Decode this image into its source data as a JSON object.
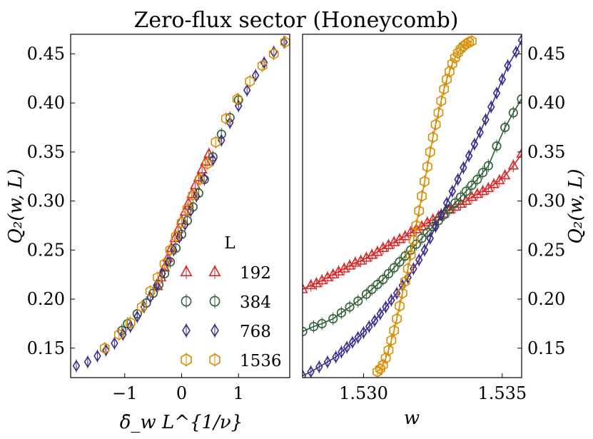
{
  "chart_data": {
    "title": "Zero-flux sector (Honeycomb)",
    "type": "scatter",
    "legend": {
      "title": "L",
      "position": "lower-right of left panel",
      "entries": [
        {
          "label": "192",
          "color": "#d62728",
          "marker": "triangle"
        },
        {
          "label": "384",
          "color": "#2f5f35",
          "marker": "circle"
        },
        {
          "label": "768",
          "color": "#3b2a8c",
          "marker": "diamond"
        },
        {
          "label": "1536",
          "color": "#d98c00",
          "marker": "hexagon"
        }
      ]
    },
    "panels": [
      {
        "name": "collapse",
        "xlabel": "δ̄_w L^{1/ν}",
        "ylabel": "Q₂(w, L)",
        "xlim": [
          -1.95,
          1.9
        ],
        "ylim": [
          0.12,
          0.47
        ],
        "xticks": [
          -1,
          0,
          1
        ],
        "xtick_labels": [
          "−1",
          "0",
          "1"
        ],
        "yticks": [
          0.15,
          0.2,
          0.25,
          0.3,
          0.35,
          0.4,
          0.45
        ],
        "ytick_labels": [
          "0.15",
          "0.20",
          "0.25",
          "0.30",
          "0.35",
          "0.40",
          "0.45"
        ],
        "series": [
          {
            "name": "192",
            "x": [
              -0.42,
              -0.36,
              -0.3,
              -0.24,
              -0.18,
              -0.12,
              -0.06,
              0.0,
              0.06,
              0.12,
              0.18,
              0.24,
              0.3,
              0.36,
              0.42,
              0.48
            ],
            "y": [
              0.213,
              0.222,
              0.232,
              0.242,
              0.252,
              0.262,
              0.271,
              0.28,
              0.289,
              0.298,
              0.307,
              0.316,
              0.324,
              0.332,
              0.34,
              0.348
            ]
          },
          {
            "name": "384",
            "x": [
              -1.05,
              -0.95,
              -0.78,
              -0.62,
              -0.5,
              -0.4,
              -0.3,
              -0.2,
              -0.1,
              0.0,
              0.1,
              0.2,
              0.3,
              0.4,
              0.55,
              0.7,
              0.85,
              1.0
            ],
            "y": [
              0.168,
              0.175,
              0.185,
              0.196,
              0.206,
              0.215,
              0.226,
              0.238,
              0.252,
              0.266,
              0.28,
              0.294,
              0.308,
              0.322,
              0.345,
              0.368,
              0.385,
              0.403
            ]
          },
          {
            "name": "768",
            "x": [
              -1.85,
              -1.65,
              -1.48,
              -1.33,
              -1.18,
              -1.03,
              -0.9,
              -0.78,
              -0.66,
              -0.55,
              -0.44,
              -0.34,
              -0.24,
              -0.14,
              -0.04,
              0.06,
              0.16,
              0.26,
              0.4,
              0.55,
              0.7,
              0.85,
              1.0,
              1.15,
              1.3,
              1.45,
              1.62,
              1.8
            ],
            "y": [
              0.132,
              0.136,
              0.142,
              0.148,
              0.155,
              0.164,
              0.172,
              0.182,
              0.192,
              0.202,
              0.214,
              0.226,
              0.238,
              0.25,
              0.263,
              0.276,
              0.29,
              0.305,
              0.323,
              0.342,
              0.362,
              0.38,
              0.397,
              0.413,
              0.428,
              0.441,
              0.452,
              0.462
            ]
          },
          {
            "name": "1536",
            "x": [
              -1.35,
              -1.1,
              -0.9,
              -0.7,
              -0.55,
              -0.42,
              -0.3,
              -0.2,
              -0.1,
              0.0,
              0.1,
              0.2,
              0.32,
              0.45,
              0.6,
              0.78,
              0.98,
              1.2,
              1.42,
              1.62,
              1.82
            ],
            "y": [
              0.15,
              0.164,
              0.176,
              0.192,
              0.208,
              0.222,
              0.236,
              0.25,
              0.264,
              0.278,
              0.292,
              0.306,
              0.322,
              0.338,
              0.36,
              0.384,
              0.404,
              0.422,
              0.438,
              0.45,
              0.462
            ]
          }
        ]
      },
      {
        "name": "raw",
        "xlabel": "w",
        "ylabel": "Q₂(w, L)",
        "xlim": [
          1.5278,
          1.5357
        ],
        "ylim": [
          0.12,
          0.47
        ],
        "xticks": [
          1.53,
          1.535
        ],
        "xtick_labels": [
          "1.530",
          "1.535"
        ],
        "yticks": [
          0.15,
          0.2,
          0.25,
          0.3,
          0.35,
          0.4,
          0.45
        ],
        "ytick_labels": [
          "0.15",
          "0.20",
          "0.25",
          "0.30",
          "0.35",
          "0.40",
          "0.45"
        ],
        "series": [
          {
            "name": "192",
            "x": [
              1.5278,
              1.5281,
              1.5283,
              1.5285,
              1.5287,
              1.5289,
              1.5291,
              1.5293,
              1.5295,
              1.5297,
              1.5299,
              1.5301,
              1.5303,
              1.5305,
              1.5307,
              1.5309,
              1.5311,
              1.5313,
              1.5315,
              1.5317,
              1.5319,
              1.5321,
              1.5323,
              1.5325,
              1.5327,
              1.5329,
              1.5331,
              1.5333,
              1.5335,
              1.5337,
              1.5339,
              1.5341,
              1.5343,
              1.5345,
              1.5347,
              1.5349,
              1.5351,
              1.5354,
              1.5357
            ],
            "y": [
              0.21,
              0.214,
              0.216,
              0.219,
              0.222,
              0.225,
              0.228,
              0.231,
              0.234,
              0.237,
              0.239,
              0.242,
              0.245,
              0.248,
              0.252,
              0.255,
              0.258,
              0.261,
              0.264,
              0.268,
              0.271,
              0.274,
              0.278,
              0.281,
              0.284,
              0.287,
              0.291,
              0.294,
              0.297,
              0.3,
              0.304,
              0.307,
              0.31,
              0.313,
              0.317,
              0.321,
              0.326,
              0.336,
              0.348
            ]
          },
          {
            "name": "384",
            "x": [
              1.5278,
              1.5282,
              1.5285,
              1.5289,
              1.5292,
              1.5295,
              1.5298,
              1.5301,
              1.5303,
              1.5305,
              1.5307,
              1.5309,
              1.5311,
              1.5313,
              1.5315,
              1.5317,
              1.5319,
              1.5321,
              1.5323,
              1.5325,
              1.5327,
              1.5329,
              1.5331,
              1.5333,
              1.5335,
              1.5337,
              1.5339,
              1.5341,
              1.5343,
              1.5345,
              1.5348,
              1.5351,
              1.5354,
              1.5357
            ],
            "y": [
              0.167,
              0.172,
              0.175,
              0.18,
              0.186,
              0.192,
              0.198,
              0.205,
              0.21,
              0.215,
              0.22,
              0.226,
              0.232,
              0.238,
              0.244,
              0.25,
              0.256,
              0.262,
              0.268,
              0.274,
              0.28,
              0.286,
              0.292,
              0.298,
              0.304,
              0.31,
              0.316,
              0.322,
              0.329,
              0.336,
              0.356,
              0.375,
              0.39,
              0.404
            ]
          },
          {
            "name": "768",
            "x": [
              1.5278,
              1.5281,
              1.5284,
              1.5287,
              1.529,
              1.5292,
              1.5294,
              1.5296,
              1.5298,
              1.53,
              1.5302,
              1.5304,
              1.5306,
              1.5308,
              1.531,
              1.5312,
              1.5314,
              1.5316,
              1.5318,
              1.532,
              1.5322,
              1.5324,
              1.5326,
              1.5328,
              1.533,
              1.5332,
              1.5334,
              1.5336,
              1.5338,
              1.534,
              1.5342,
              1.5344,
              1.5346,
              1.5348,
              1.535,
              1.5352,
              1.5355,
              1.5357
            ],
            "y": [
              0.122,
              0.126,
              0.131,
              0.136,
              0.141,
              0.146,
              0.151,
              0.156,
              0.161,
              0.166,
              0.172,
              0.178,
              0.185,
              0.192,
              0.199,
              0.206,
              0.214,
              0.222,
              0.231,
              0.24,
              0.25,
              0.262,
              0.274,
              0.286,
              0.298,
              0.31,
              0.322,
              0.334,
              0.346,
              0.358,
              0.37,
              0.383,
              0.396,
              0.41,
              0.424,
              0.438,
              0.452,
              0.464
            ]
          },
          {
            "name": "1536",
            "x": [
              1.5305,
              1.5306,
              1.5307,
              1.5308,
              1.5309,
              1.531,
              1.5311,
              1.5312,
              1.5313,
              1.5314,
              1.5315,
              1.5316,
              1.5317,
              1.5318,
              1.5319,
              1.532,
              1.5321,
              1.5322,
              1.5323,
              1.5324,
              1.5325,
              1.5326,
              1.5327,
              1.5328,
              1.5329,
              1.533,
              1.5331,
              1.5332,
              1.5333,
              1.5334,
              1.5335,
              1.5336,
              1.5337,
              1.5338,
              1.5339
            ],
            "y": [
              0.126,
              0.129,
              0.133,
              0.14,
              0.148,
              0.158,
              0.168,
              0.18,
              0.193,
              0.206,
              0.218,
              0.231,
              0.245,
              0.26,
              0.275,
              0.29,
              0.305,
              0.32,
              0.335,
              0.35,
              0.365,
              0.378,
              0.39,
              0.402,
              0.414,
              0.424,
              0.432,
              0.44,
              0.446,
              0.451,
              0.455,
              0.458,
              0.46,
              0.462,
              0.463
            ]
          }
        ]
      }
    ]
  }
}
